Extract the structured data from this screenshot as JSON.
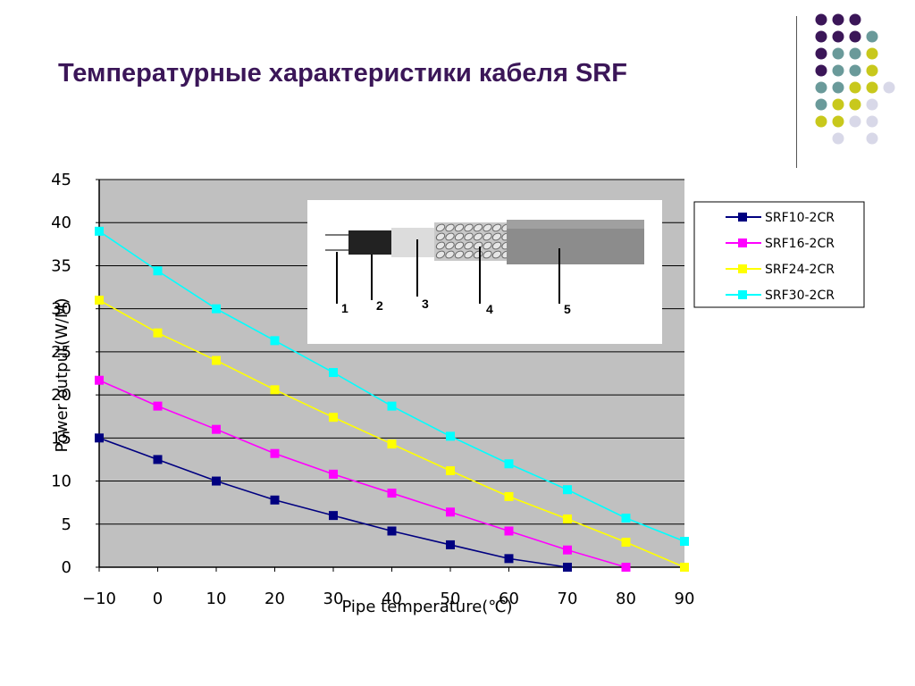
{
  "slide": {
    "title": "Температурные характеристики кабеля SRF"
  },
  "decoration": {
    "dot_colors": [
      "#3b1658",
      "#6a9a9a",
      "#c8c81c",
      "#d8d8e8"
    ],
    "dot_grid": [
      [
        null,
        0,
        0,
        0,
        null
      ],
      [
        null,
        0,
        0,
        0,
        1
      ],
      [
        null,
        0,
        1,
        1,
        2
      ],
      [
        null,
        0,
        1,
        1,
        2
      ],
      [
        null,
        1,
        1,
        2,
        2,
        3
      ],
      [
        null,
        1,
        2,
        2,
        3
      ],
      [
        null,
        2,
        2,
        3,
        3
      ],
      [
        null,
        null,
        3,
        null,
        3
      ]
    ]
  },
  "chart_data": {
    "type": "line",
    "x": [
      -10,
      0,
      10,
      20,
      30,
      40,
      50,
      60,
      70,
      80,
      90
    ],
    "x_tick_labels": [
      "−10",
      "0",
      "10",
      "20",
      "30",
      "40",
      "50",
      "60",
      "70",
      "80",
      "90"
    ],
    "xlabel": "Pipe temperature(℃)",
    "ylabel": "Power output(W/M)",
    "ylim": [
      0,
      45
    ],
    "y_ticks": [
      0,
      5,
      10,
      15,
      20,
      25,
      30,
      35,
      40,
      45
    ],
    "xlim": [
      -10,
      90
    ],
    "grid": "horizontal",
    "legend_position": "right",
    "plot_background": "#c0c0c0",
    "series": [
      {
        "name": "SRF10-2CR",
        "color": "#000080",
        "x": [
          -10,
          0,
          10,
          20,
          30,
          40,
          50,
          60,
          70
        ],
        "values": [
          15,
          12.5,
          10,
          7.8,
          6,
          4.2,
          2.6,
          1,
          0
        ]
      },
      {
        "name": "SRF16-2CR",
        "color": "#ff00ff",
        "x": [
          -10,
          0,
          10,
          20,
          30,
          40,
          50,
          60,
          70,
          80
        ],
        "values": [
          21.7,
          18.7,
          16,
          13.2,
          10.8,
          8.6,
          6.4,
          4.2,
          2,
          0
        ]
      },
      {
        "name": "SRF24-2CR",
        "color": "#ffff00",
        "x": [
          -10,
          0,
          10,
          20,
          30,
          40,
          50,
          60,
          70,
          80,
          90
        ],
        "values": [
          31,
          27.2,
          24,
          20.6,
          17.4,
          14.3,
          11.2,
          8.2,
          5.6,
          2.9,
          0
        ]
      },
      {
        "name": "SRF30-2CR",
        "color": "#00ffff",
        "x": [
          -10,
          0,
          10,
          20,
          30,
          40,
          50,
          60,
          70,
          80,
          90
        ],
        "values": [
          39,
          34.4,
          30,
          26.3,
          22.6,
          18.7,
          15.2,
          12,
          9,
          5.7,
          3
        ]
      }
    ],
    "inset_image": {
      "part_labels": [
        "1",
        "2",
        "3",
        "4",
        "5"
      ]
    }
  }
}
